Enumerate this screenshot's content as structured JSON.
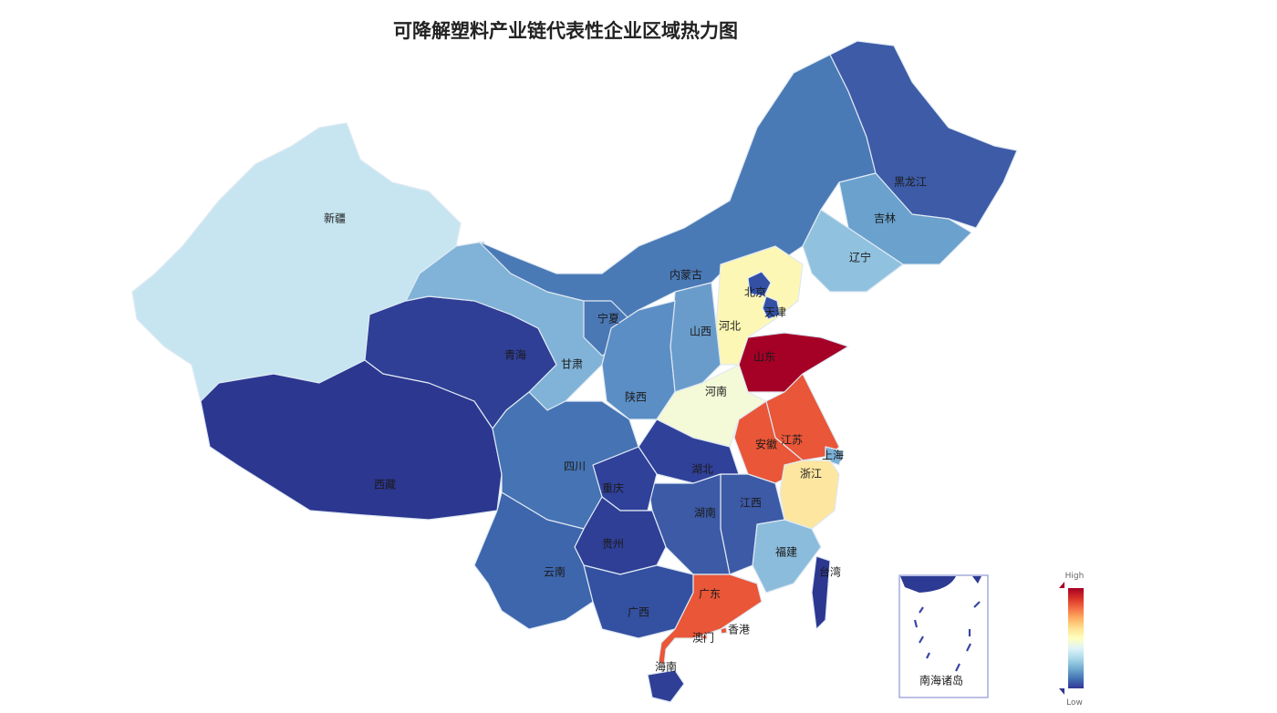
{
  "title": "可降解塑料产业链代表性企业区域热力图",
  "legend": {
    "high_label": "High",
    "low_label": "Low",
    "colors": [
      "#313695",
      "#4575b4",
      "#74add1",
      "#abd9e9",
      "#e0f3f8",
      "#ffffbf",
      "#fee090",
      "#fdae61",
      "#f46d43",
      "#d73027",
      "#a50026"
    ]
  },
  "inset_label": "南海诸岛",
  "provinces": [
    {
      "name": "新疆",
      "color": "#c6e5f0"
    },
    {
      "name": "西藏",
      "color": "#2c3790"
    },
    {
      "name": "青海",
      "color": "#2f3f96"
    },
    {
      "name": "甘肃",
      "color": "#80b3d7"
    },
    {
      "name": "内蒙古",
      "color": "#4a7ab6"
    },
    {
      "name": "黑龙江",
      "color": "#3d5ba7"
    },
    {
      "name": "吉林",
      "color": "#6aa1cd"
    },
    {
      "name": "辽宁",
      "color": "#90c2df"
    },
    {
      "name": "河北",
      "color": "#fdf7b6"
    },
    {
      "name": "北京",
      "color": "#3350a5"
    },
    {
      "name": "天津",
      "color": "#3350a5"
    },
    {
      "name": "山西",
      "color": "#6a9ccb"
    },
    {
      "name": "宁夏",
      "color": "#4a78b5"
    },
    {
      "name": "陕西",
      "color": "#5b8ec5"
    },
    {
      "name": "山东",
      "color": "#a50026"
    },
    {
      "name": "河南",
      "color": "#f4f9d8"
    },
    {
      "name": "江苏",
      "color": "#e95638"
    },
    {
      "name": "安徽",
      "color": "#e95638"
    },
    {
      "name": "上海",
      "color": "#7ab0d7"
    },
    {
      "name": "浙江",
      "color": "#fde6a0"
    },
    {
      "name": "福建",
      "color": "#8bbcdc"
    },
    {
      "name": "江西",
      "color": "#3c5aa6"
    },
    {
      "name": "湖北",
      "color": "#30419a"
    },
    {
      "name": "湖南",
      "color": "#3c5aa6"
    },
    {
      "name": "重庆",
      "color": "#30419a"
    },
    {
      "name": "四川",
      "color": "#4573b3"
    },
    {
      "name": "贵州",
      "color": "#2f3f96"
    },
    {
      "name": "云南",
      "color": "#3d66ad"
    },
    {
      "name": "广西",
      "color": "#3450a0"
    },
    {
      "name": "广东",
      "color": "#e95638"
    },
    {
      "name": "香港",
      "color": "#e95638"
    },
    {
      "name": "澳门",
      "color": "#e95638"
    },
    {
      "name": "海南",
      "color": "#2f3f96"
    },
    {
      "name": "台湾",
      "color": "#2c3790"
    }
  ]
}
